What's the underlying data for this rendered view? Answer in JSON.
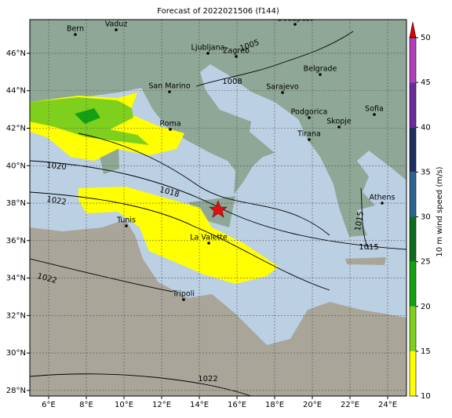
{
  "chart_data": {
    "type": "map",
    "title": "Forecast of 2022021506 (f144)",
    "xlim": [
      5,
      25
    ],
    "ylim": [
      27.7,
      47.8
    ],
    "xticks": [
      {
        "value": 6,
        "label": "6°E"
      },
      {
        "value": 8,
        "label": "8°E"
      },
      {
        "value": 10,
        "label": "10°E"
      },
      {
        "value": 12,
        "label": "12°E"
      },
      {
        "value": 14,
        "label": "14°E"
      },
      {
        "value": 16,
        "label": "16°E"
      },
      {
        "value": 18,
        "label": "18°E"
      },
      {
        "value": 20,
        "label": "20°E"
      },
      {
        "value": 22,
        "label": "22°E"
      },
      {
        "value": 24,
        "label": "24°E"
      }
    ],
    "yticks": [
      {
        "value": 28,
        "label": "28°N"
      },
      {
        "value": 30,
        "label": "30°N"
      },
      {
        "value": 32,
        "label": "32°N"
      },
      {
        "value": 34,
        "label": "34°N"
      },
      {
        "value": 36,
        "label": "36°N"
      },
      {
        "value": 38,
        "label": "38°N"
      },
      {
        "value": 40,
        "label": "40°N"
      },
      {
        "value": 42,
        "label": "42°N"
      },
      {
        "value": 44,
        "label": "44°N"
      },
      {
        "value": 46,
        "label": "46°N"
      }
    ],
    "grid": true,
    "cities": [
      "Bern",
      "Vaduz",
      "Budapest",
      "Ljubljana",
      "Zagreb",
      "San Marino",
      "Belgrade",
      "Sarajevo",
      "Roma",
      "Podgorica",
      "Skopje",
      "Sofia",
      "Tirana",
      "Athens",
      "Tunis",
      "La Valette",
      "Tripoli"
    ],
    "isobar_labels": [
      "1020",
      "1018",
      "1022",
      "1022",
      "1022",
      "1008",
      "1005",
      "1015",
      "1015"
    ],
    "colorbar": {
      "label": "10 m wind speed (m/s)",
      "lim": [
        10,
        50
      ],
      "ticks": [
        10,
        15,
        20,
        25,
        30,
        35,
        40,
        45,
        50
      ],
      "colors": [
        "#ffff00",
        "#7fd01c",
        "#14a014",
        "#0a6e1e",
        "#2c6590",
        "#1c2f60",
        "#6a2c9c",
        "#b040b8"
      ],
      "extend_color": "#dd0000"
    }
  }
}
